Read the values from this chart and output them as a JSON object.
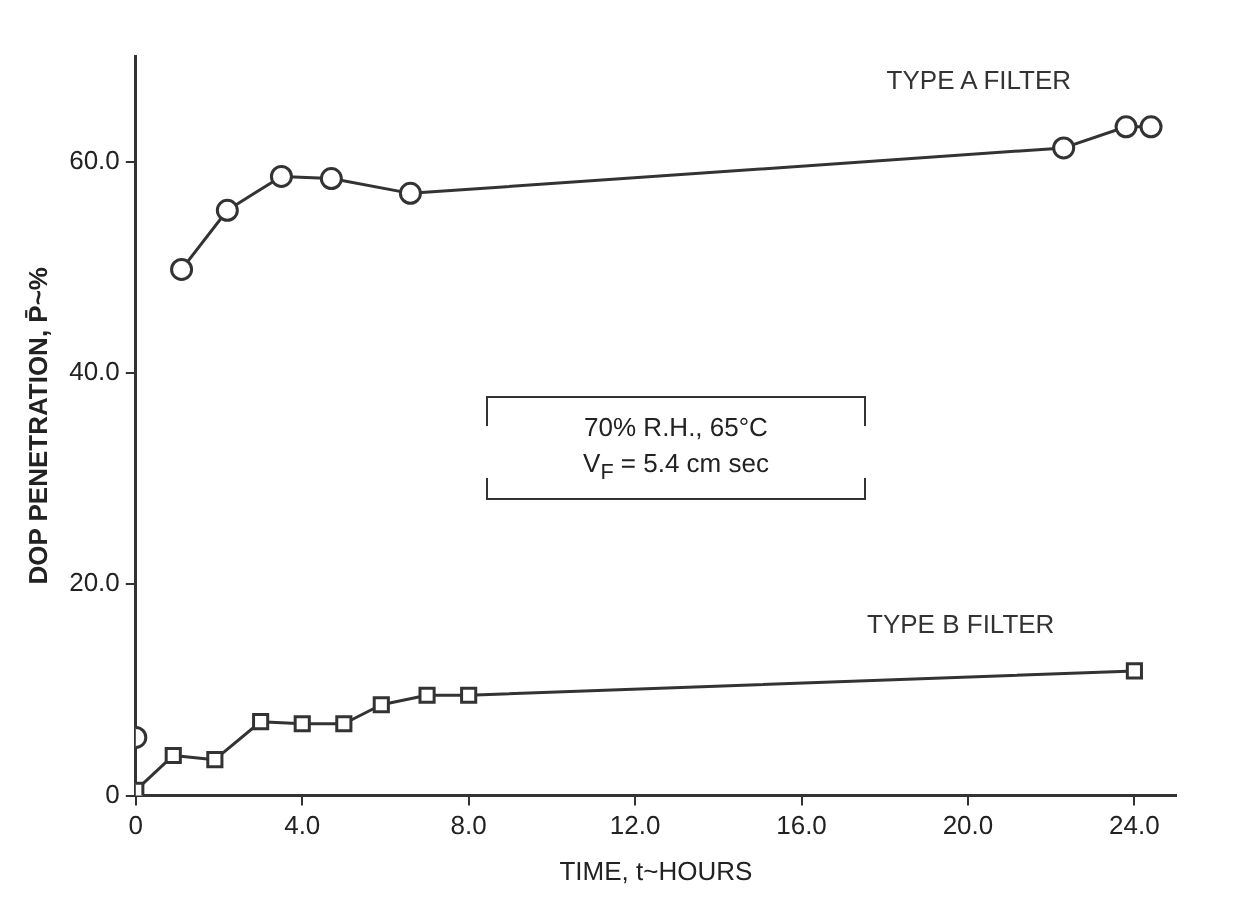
{
  "chart_data": {
    "type": "line",
    "xlabel": "TIME, t~HOURS",
    "ylabel": "DOP PENETRATION, P̄~%",
    "xlim": [
      0,
      25
    ],
    "xticks": [
      0,
      {
        "value": 4,
        "label": "4.0"
      },
      {
        "value": 8,
        "label": "8.0"
      },
      {
        "value": 12,
        "label": "12.0"
      },
      {
        "value": 16,
        "label": "16.0"
      },
      {
        "value": 20,
        "label": "20.0"
      },
      {
        "value": 24,
        "label": "24.0"
      }
    ],
    "ylim": [
      0,
      70
    ],
    "yticks": [
      0,
      {
        "value": 20,
        "label": "20.0"
      },
      {
        "value": 40,
        "label": "40.0"
      },
      {
        "value": 60,
        "label": "60.0"
      }
    ],
    "grid": false,
    "legend": false,
    "series": [
      {
        "name": "TYPE A FILTER",
        "color": "#333333",
        "marker": "circle",
        "x": [
          1.1,
          2.2,
          3.5,
          4.7,
          6.6,
          22.3,
          23.8,
          24.4
        ],
        "values": [
          49.8,
          55.4,
          58.6,
          58.4,
          57.0,
          61.3,
          63.3,
          63.3
        ]
      },
      {
        "name": "TYPE B FILTER",
        "color": "#333333",
        "marker": "square",
        "x": [
          0,
          0.9,
          1.9,
          3.0,
          4.0,
          5.0,
          5.9,
          7.0,
          8.0,
          24.0
        ],
        "values": [
          0.5,
          3.8,
          3.4,
          7.0,
          6.8,
          6.8,
          8.6,
          9.5,
          9.5,
          11.8
        ]
      },
      {
        "type": "scatter",
        "color": "#333333",
        "marker": "circle",
        "x": [
          0
        ],
        "values": [
          5.5
        ]
      }
    ],
    "annotations": [
      "70% R.H., 65°C",
      "V$_{F}$ = 5.4 cm sec"
    ]
  }
}
